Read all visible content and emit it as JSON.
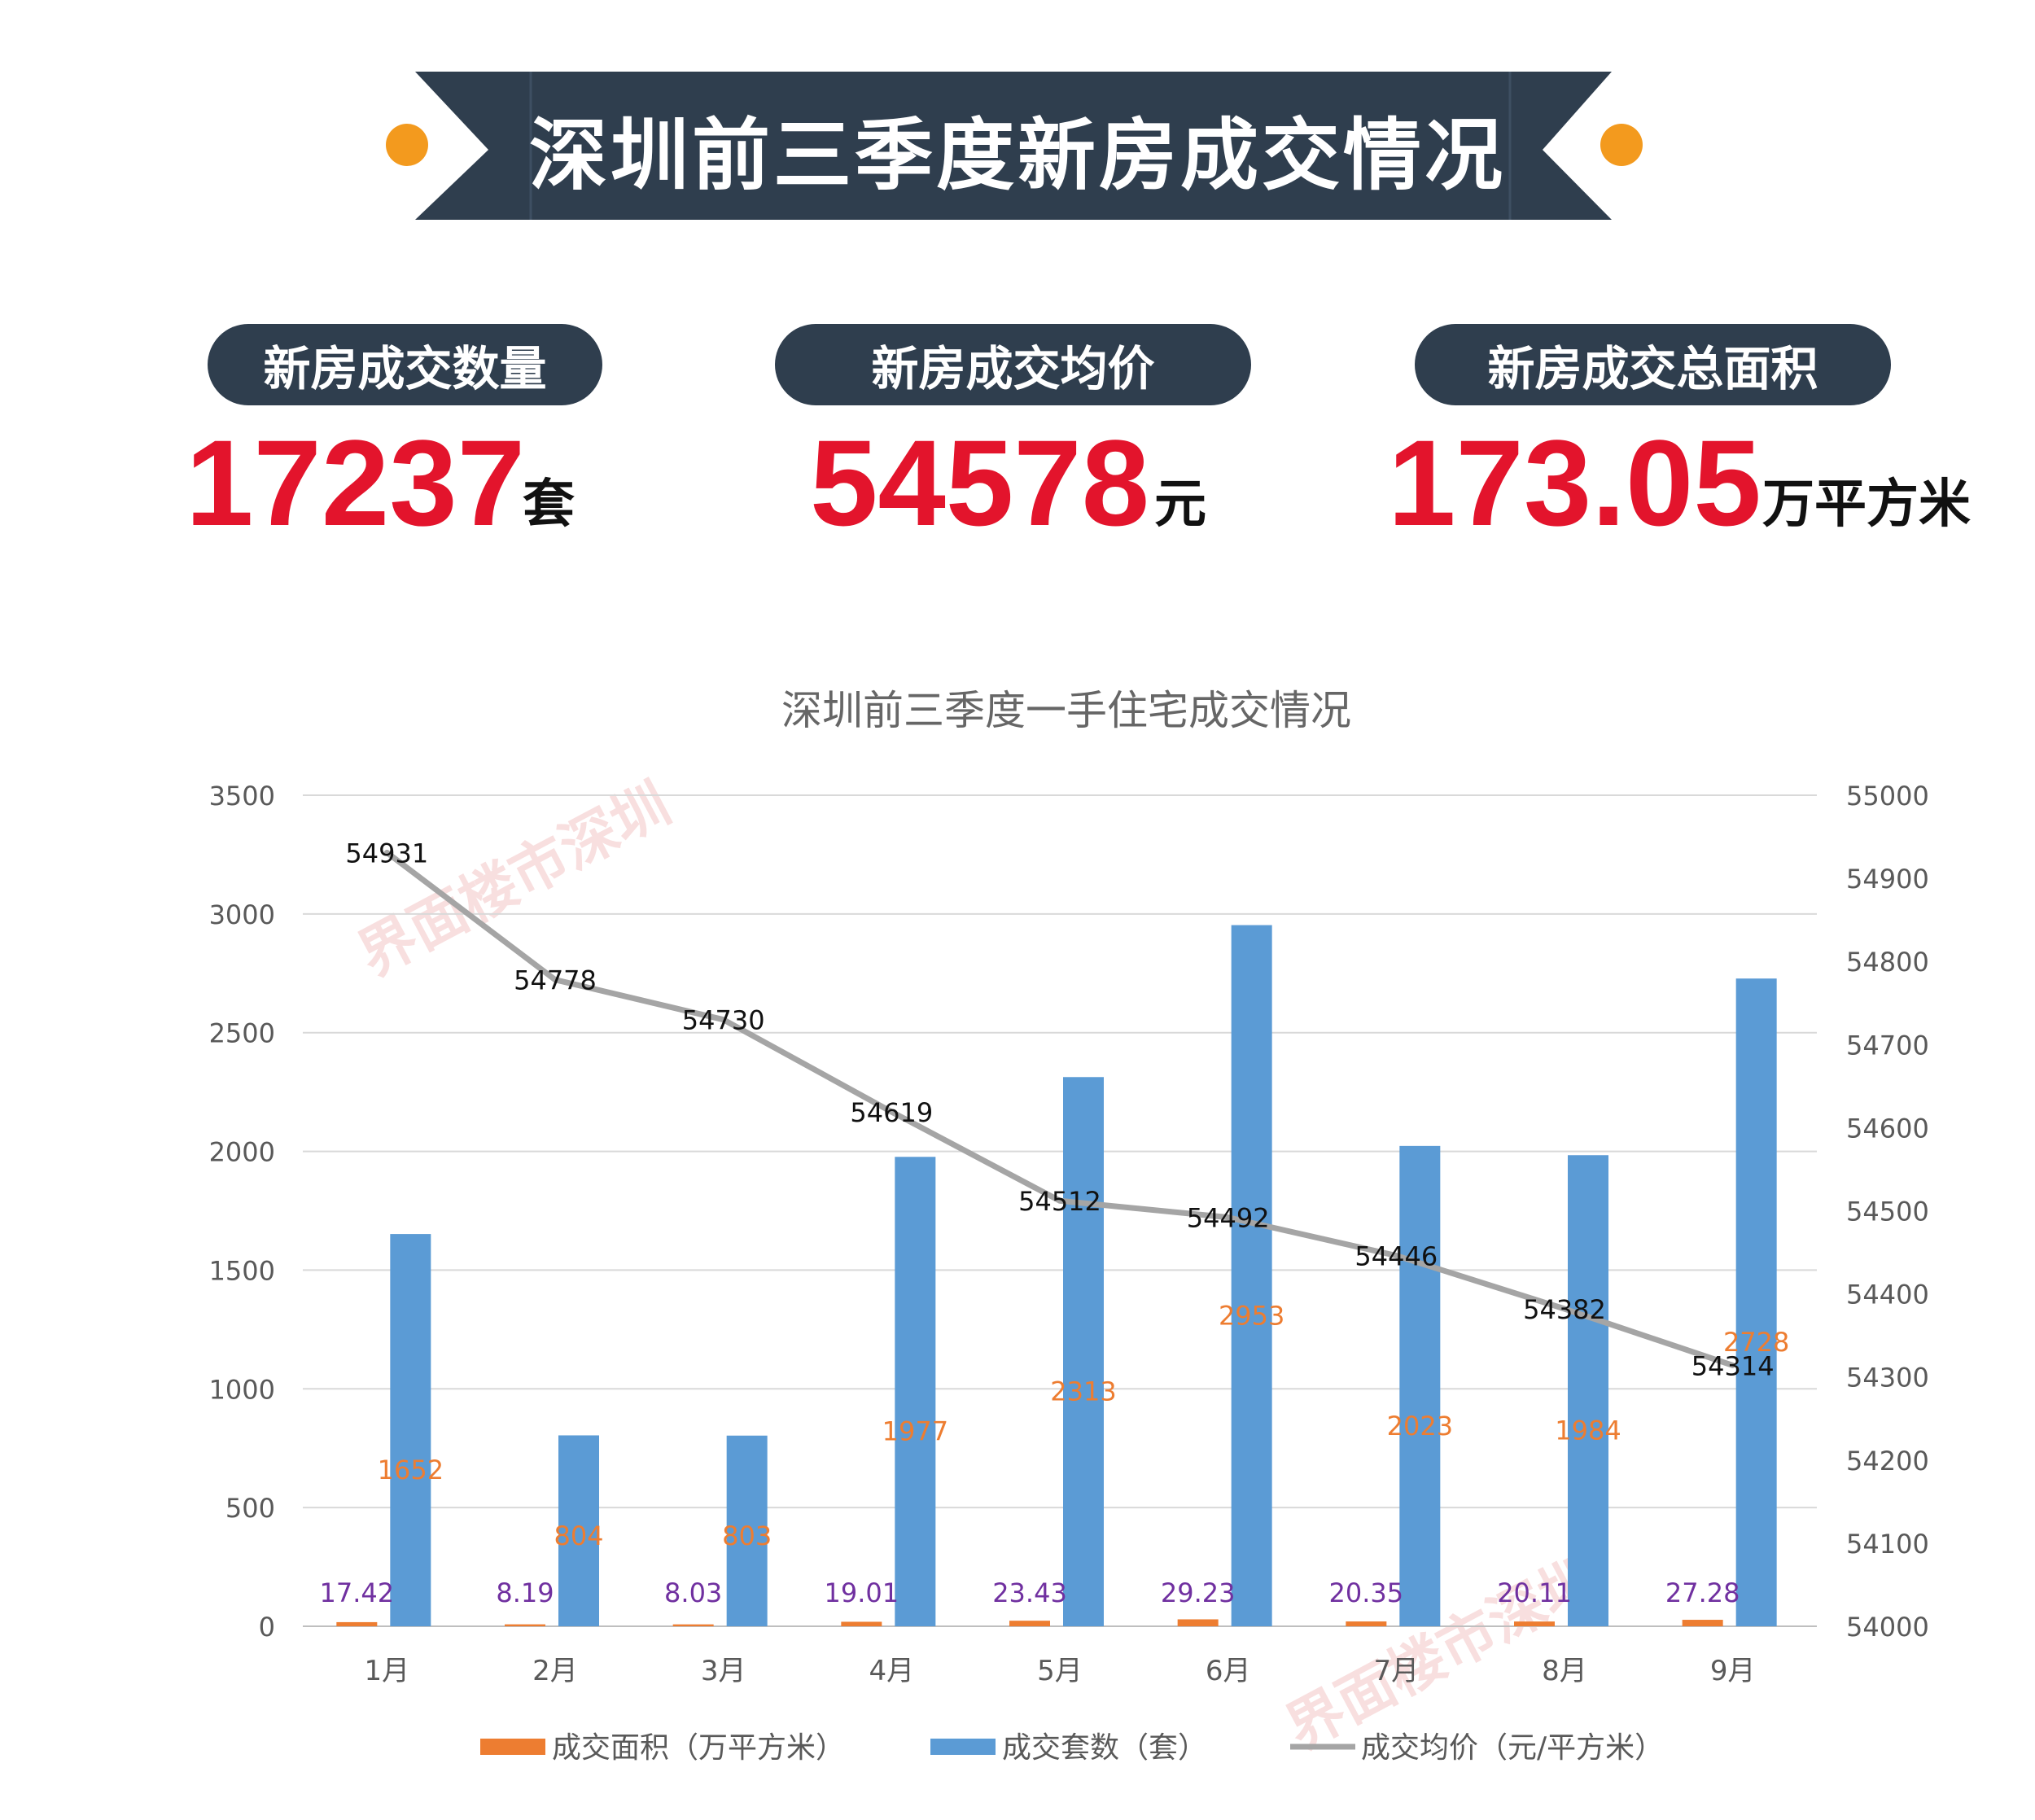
{
  "header": {
    "title": "深圳前三季度新房成交情况"
  },
  "stats": [
    {
      "label": "新房成交数量",
      "value": "17237",
      "unit": "套"
    },
    {
      "label": "新房成交均价",
      "value": "54578",
      "unit": "元"
    },
    {
      "label": "新房成交总面积",
      "value": "173.05",
      "unit": "万平方米"
    }
  ],
  "colors": {
    "banner": "#2f3e4e",
    "dot": "#f39a1e",
    "stat_value": "#e3142c",
    "area": "#ed7d31",
    "units": "#5b9bd5",
    "price": "#a5a5a5",
    "area_label": "#7030a0",
    "units_label": "#ed7d31"
  },
  "chart_data": {
    "type": "bar",
    "title": "深圳前三季度一手住宅成交情况",
    "categories": [
      "1月",
      "2月",
      "3月",
      "4月",
      "5月",
      "6月",
      "7月",
      "8月",
      "9月"
    ],
    "y_left": {
      "min": 0,
      "max": 3500,
      "ticks": [
        "0",
        "500",
        "1000",
        "1500",
        "2000",
        "2500",
        "3000",
        "3500"
      ]
    },
    "y_right": {
      "min": 54000,
      "max": 55000,
      "ticks": [
        "54000",
        "54100",
        "54200",
        "54300",
        "54400",
        "54500",
        "54600",
        "54700",
        "54800",
        "54900",
        "55000"
      ]
    },
    "grid": true,
    "legend_position": "bottom",
    "series": [
      {
        "name": "成交面积（万平方米）",
        "type": "bar",
        "axis": "left",
        "values": [
          17.42,
          8.19,
          8.03,
          19.01,
          23.43,
          29.23,
          20.35,
          20.11,
          27.28
        ],
        "labels": [
          "17.42",
          "8.19",
          "8.03",
          "19.01",
          "23.43",
          "29.23",
          "20.35",
          "20.11",
          "27.28"
        ]
      },
      {
        "name": "成交套数（套）",
        "type": "bar",
        "axis": "left",
        "values": [
          1652,
          804,
          803,
          1977,
          2313,
          2953,
          2023,
          1984,
          2728
        ],
        "labels": [
          "1652",
          "804",
          "803",
          "1977",
          "2313",
          "2953",
          "2023",
          "1984",
          "2728"
        ]
      },
      {
        "name": "成交均价（元/平方米）",
        "type": "line",
        "axis": "right",
        "values": [
          54931,
          54778,
          54730,
          54619,
          54512,
          54492,
          54446,
          54382,
          54314
        ],
        "labels": [
          "54931",
          "54778",
          "54730",
          "54619",
          "54512",
          "54492",
          "54446",
          "54382",
          "54314"
        ]
      }
    ],
    "watermark": "界面楼市深圳"
  }
}
